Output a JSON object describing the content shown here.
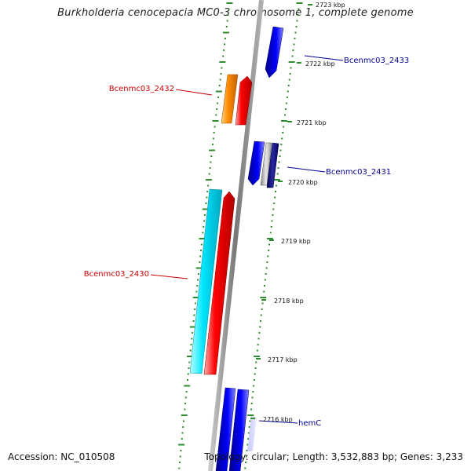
{
  "title": "Burkholderia cenocepacia MC0-3 chromosome 1, complete genome",
  "accession": "Accession: NC_010508",
  "topology": "Topology: circular; Length: 3,532,883 bp; Genes: 3,233",
  "colors": {
    "backbone": "#8c8c8c",
    "dots": "#2e8b2e",
    "forward_gene": "#ff0000",
    "reverse_gene": "#0000ff",
    "cds_orange": "#ff8c00",
    "cds_cyan": "#00e5ff",
    "label_forward": "#cc0000",
    "label_reverse": "#000099"
  },
  "ticks": [
    {
      "label": "2723 kbp"
    },
    {
      "label": "2722 kbp"
    },
    {
      "label": "2721 kbp"
    },
    {
      "label": "2720 kbp"
    },
    {
      "label": "2719 kbp"
    },
    {
      "label": "2718 kbp"
    },
    {
      "label": "2717 kbp"
    },
    {
      "label": "2716 kbp"
    }
  ],
  "genes": [
    {
      "label": "Bcenmc03_2433",
      "strand": "reverse"
    },
    {
      "label": "Bcenmc03_2432",
      "strand": "forward"
    },
    {
      "label": "Bcenmc03_2431",
      "strand": "reverse"
    },
    {
      "label": "Bcenmc03_2430",
      "strand": "forward"
    },
    {
      "label": "hemC",
      "strand": "reverse"
    }
  ]
}
